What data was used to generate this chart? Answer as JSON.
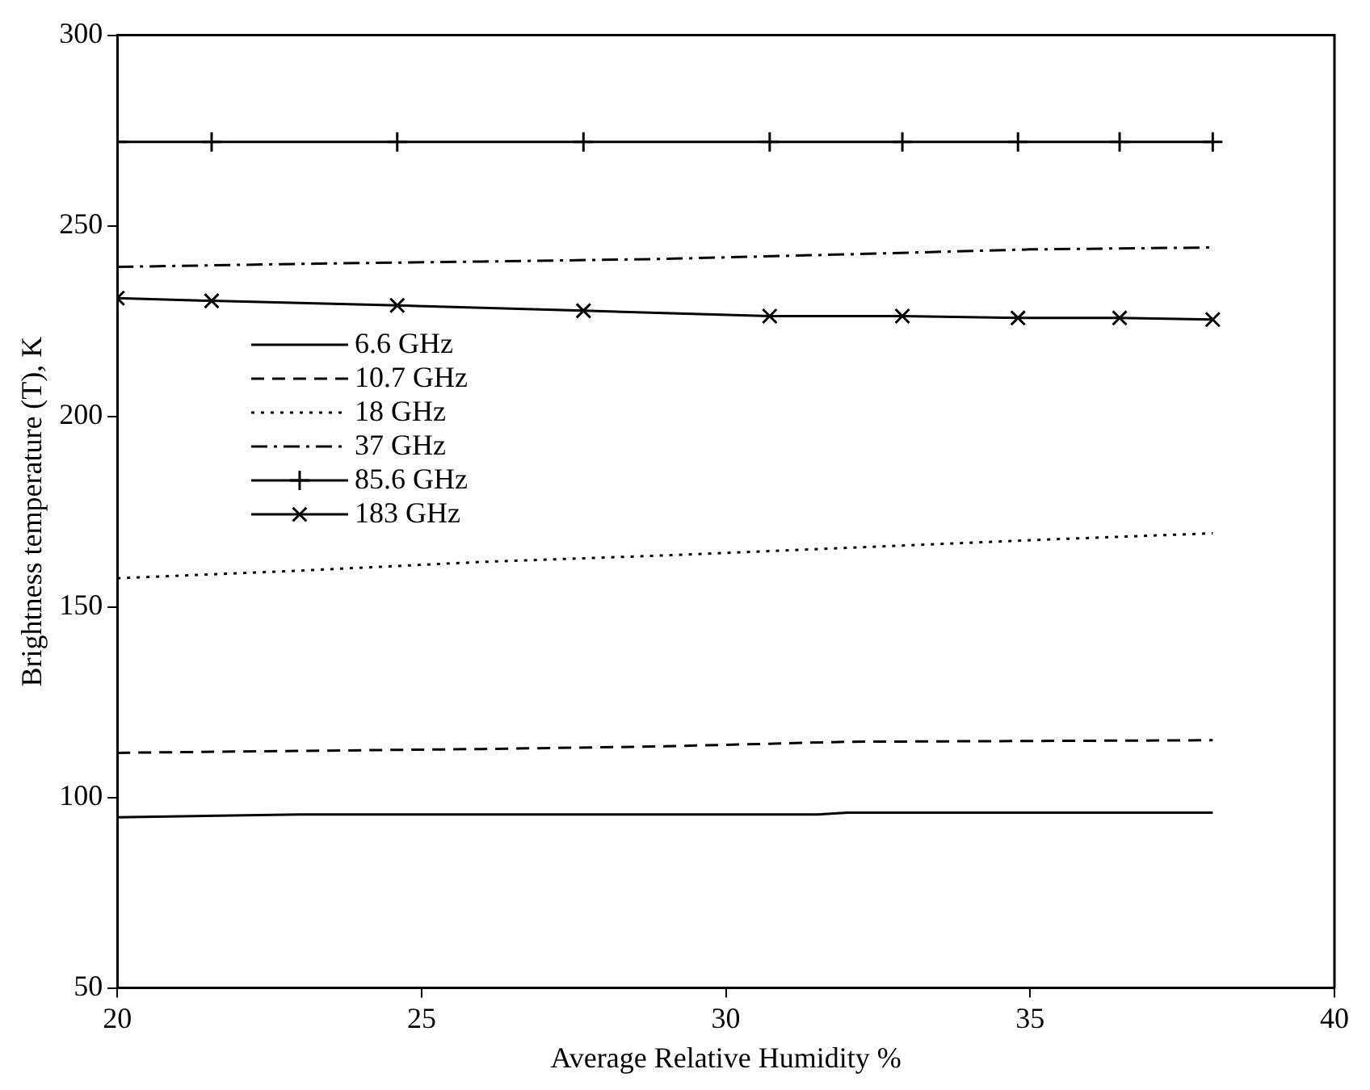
{
  "chart_data": {
    "type": "line",
    "xlabel": "Average Relative Humidity %",
    "ylabel": "Brightness temperature (T), K",
    "xlim": [
      20,
      40
    ],
    "xticks": [
      20,
      25,
      30,
      35,
      40
    ],
    "ylim": [
      50,
      300
    ],
    "yticks": [
      50,
      100,
      150,
      200,
      250,
      300
    ],
    "grid": false,
    "legend": "top left",
    "series": [
      {
        "name": "6.6 GHz",
        "color": "#000000",
        "line_style": "solid",
        "marker": "none",
        "x": [
          20,
          23,
          31.5,
          32,
          38
        ],
        "values": [
          94.8,
          95.5,
          95.5,
          96,
          96
        ]
      },
      {
        "name": "10.7 GHz",
        "color": "#000000",
        "line_style": "dashed",
        "marker": "none",
        "x": [
          20,
          23,
          26,
          29,
          32,
          35,
          38
        ],
        "values": [
          111.7,
          112.2,
          112.7,
          113.4,
          114.6,
          114.8,
          115
        ]
      },
      {
        "name": "18 GHz",
        "color": "#000000",
        "line_style": "dotted",
        "marker": "none",
        "x": [
          20,
          23,
          26,
          29,
          32,
          35,
          38
        ],
        "values": [
          157.5,
          159.5,
          161.8,
          163.5,
          165.5,
          167.5,
          169.3
        ]
      },
      {
        "name": "37 GHz",
        "color": "#000000",
        "line_style": "dashdot",
        "marker": "none",
        "x": [
          20,
          23,
          26,
          29,
          32,
          35,
          38
        ],
        "values": [
          239.2,
          240,
          240.6,
          241.3,
          242.5,
          243.8,
          244.3
        ]
      },
      {
        "name": "85.6 GHz",
        "color": "#000000",
        "line_style": "solid",
        "marker": "plus",
        "x": [
          20,
          21.55,
          24.6,
          27.66,
          30.72,
          32.9,
          34.8,
          36.47,
          38
        ],
        "values": [
          272,
          272,
          272,
          272,
          272,
          272,
          272,
          272,
          272
        ]
      },
      {
        "name": "183 GHz",
        "color": "#000000",
        "line_style": "solid",
        "marker": "cross",
        "x": [
          20,
          21.55,
          24.6,
          27.66,
          30.72,
          32.9,
          34.8,
          36.47,
          38
        ],
        "values": [
          231,
          230.3,
          229.1,
          227.7,
          226.3,
          226.3,
          225.8,
          225.8,
          225.4
        ]
      }
    ]
  }
}
